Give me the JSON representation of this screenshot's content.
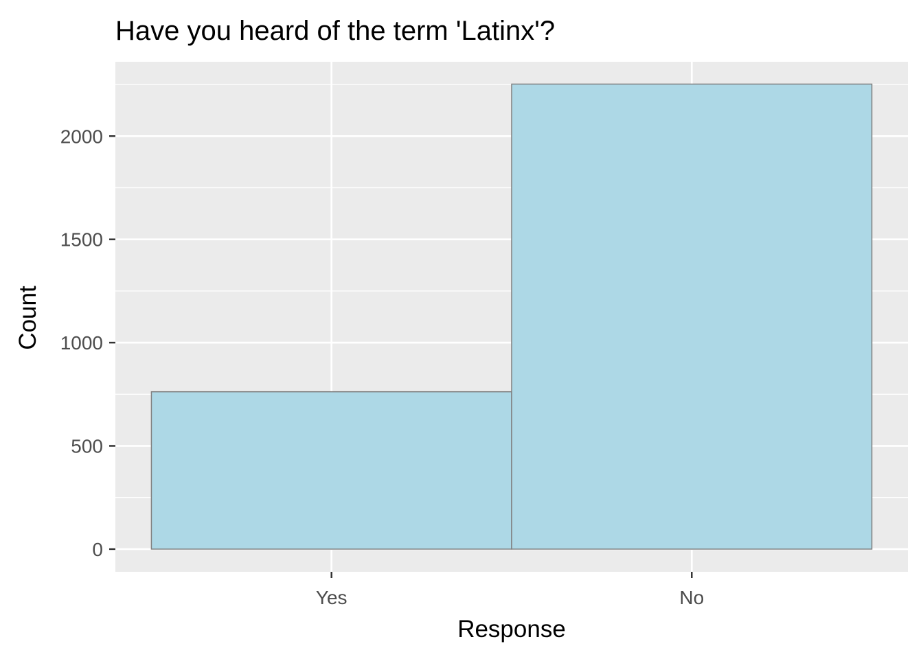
{
  "chart_data": {
    "type": "bar",
    "title": "Have you heard of the term 'Latinx'?",
    "xlabel": "Response",
    "ylabel": "Count",
    "categories": [
      "Yes",
      "No"
    ],
    "values": [
      762,
      2252
    ],
    "ylim": [
      -110,
      2360
    ],
    "yticks": [
      0,
      500,
      1000,
      1500,
      2000
    ],
    "grid": true,
    "legend": "none",
    "colors": {
      "panel_background": "#ebebeb",
      "grid": "#ffffff",
      "bar_fill": "#add8e6",
      "bar_outline": "#7f7f7f",
      "tick_text": "#4d4d4d",
      "axis_ticks": "#333333"
    }
  }
}
